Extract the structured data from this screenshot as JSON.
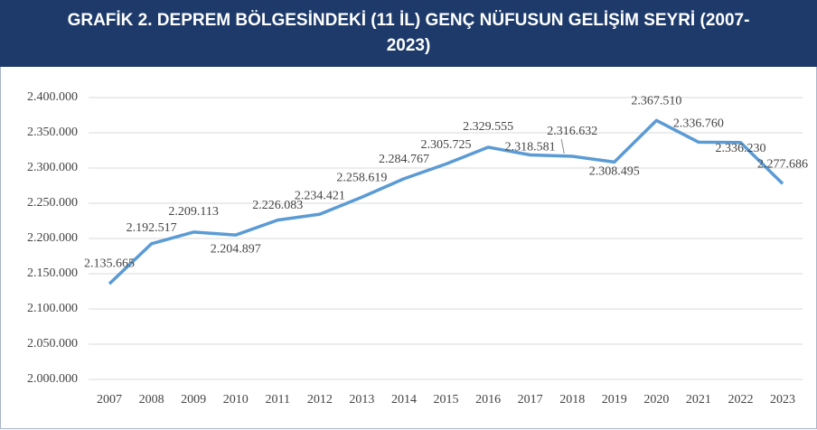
{
  "chart_data": {
    "type": "line",
    "title": "GRAFİK 2. DEPREM BÖLGESİNDEKİ (11 İL) GENÇ NÜFUSUN GELİŞİM SEYRİ (2007-2023)",
    "categories": [
      "2007",
      "2008",
      "2009",
      "2010",
      "2011",
      "2012",
      "2013",
      "2014",
      "2015",
      "2016",
      "2017",
      "2018",
      "2019",
      "2020",
      "2021",
      "2022",
      "2023"
    ],
    "series": [
      {
        "name": "Genç nüfus",
        "color": "#5b9bd5",
        "values": [
          2135665,
          2192517,
          2209113,
          2204897,
          2226083,
          2234421,
          2258619,
          2284767,
          2305725,
          2329555,
          2318581,
          2316632,
          2308495,
          2367510,
          2336760,
          2336230,
          2277686
        ],
        "value_labels": [
          "2.135.665",
          "2.192.517",
          "2.209.113",
          "2.204.897",
          "2.226.083",
          "2.234.421",
          "2.258.619",
          "2.284.767",
          "2.305.725",
          "2.329.555",
          "2.318.581",
          "2.316.632",
          "2.308.495",
          "2.367.510",
          "2.336.760",
          "2.336.230",
          "2.277.686"
        ]
      }
    ],
    "ylim": [
      2000000,
      2400000
    ],
    "yticks": [
      {
        "value": 2000000,
        "label": "2.000.000"
      },
      {
        "value": 2050000,
        "label": "2.050.000"
      },
      {
        "value": 2100000,
        "label": "2.100.000"
      },
      {
        "value": 2150000,
        "label": "2.150.000"
      },
      {
        "value": 2200000,
        "label": "2.200.000"
      },
      {
        "value": 2250000,
        "label": "2.250.000"
      },
      {
        "value": 2300000,
        "label": "2.300.000"
      },
      {
        "value": 2350000,
        "label": "2.350.000"
      },
      {
        "value": 2400000,
        "label": "2.400.000"
      }
    ],
    "grid": true
  }
}
